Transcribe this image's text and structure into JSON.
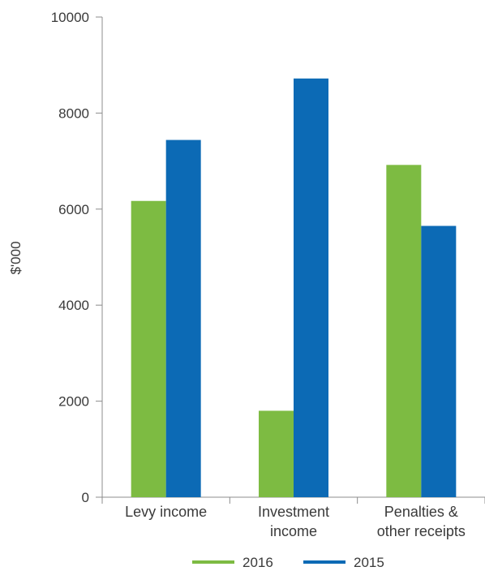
{
  "chart_data": {
    "type": "bar",
    "title": "",
    "xlabel": "",
    "ylabel": "$'000",
    "categories": [
      [
        "Levy income"
      ],
      [
        "Investment",
        "income"
      ],
      [
        "Penalties &",
        "other receipts"
      ]
    ],
    "series": [
      {
        "name": "2016",
        "color": "#7dbb42",
        "values": [
          6170,
          1800,
          6920
        ]
      },
      {
        "name": "2015",
        "color": "#0c6ab5",
        "values": [
          7440,
          8720,
          5650
        ]
      }
    ],
    "ylim": [
      0,
      10000
    ],
    "yticks": [
      0,
      2000,
      4000,
      6000,
      8000,
      10000
    ],
    "grid": false,
    "legend_position": "bottom"
  }
}
